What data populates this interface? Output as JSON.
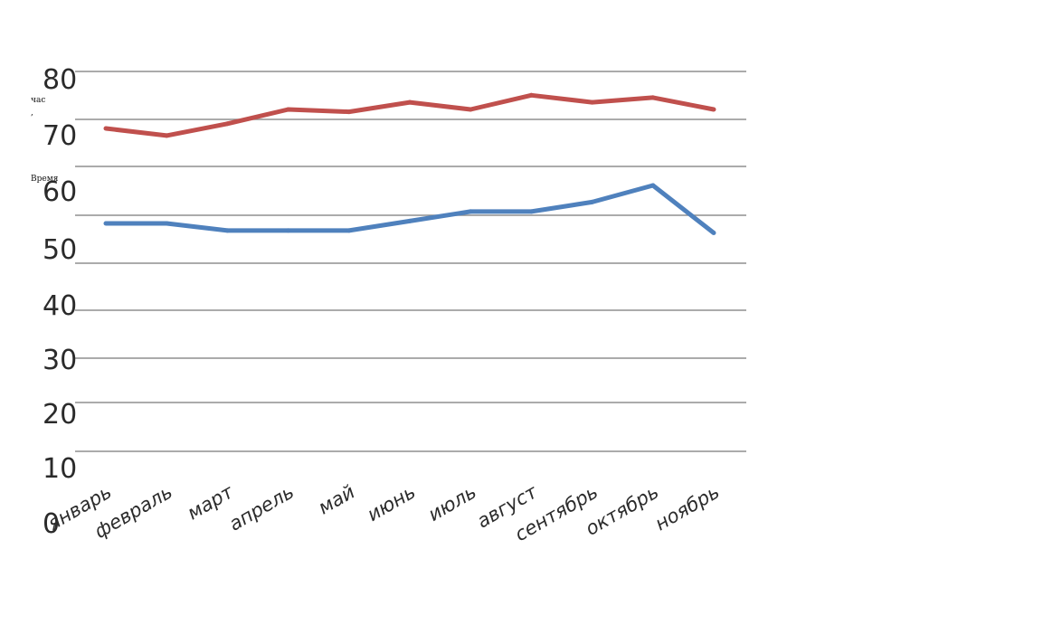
{
  "chart_data": {
    "type": "line",
    "ylabel_lines": [
      "час",
      ",",
      "Время"
    ],
    "yticks": [
      "80",
      "70",
      "60",
      "50",
      "40",
      "30",
      "20",
      "10",
      "0"
    ],
    "categories": [
      "январь",
      "февраль",
      "март",
      "апрель",
      "май",
      "июнь",
      "июль",
      "август",
      "сентябрь",
      "октябрь",
      "ноябрь"
    ],
    "series": [
      {
        "values": [
          68,
          66.5,
          69,
          72,
          71.5,
          73.5,
          72,
          75,
          73.5,
          74.5,
          72
        ],
        "color": "#c0504d"
      },
      {
        "values": [
          48,
          48,
          46.5,
          46.5,
          46.5,
          48.5,
          50.5,
          50.5,
          52.5,
          56,
          46
        ],
        "color": "#4f81bd"
      }
    ],
    "ylim": [
      0,
      80
    ],
    "grid": true,
    "legend": "none"
  }
}
